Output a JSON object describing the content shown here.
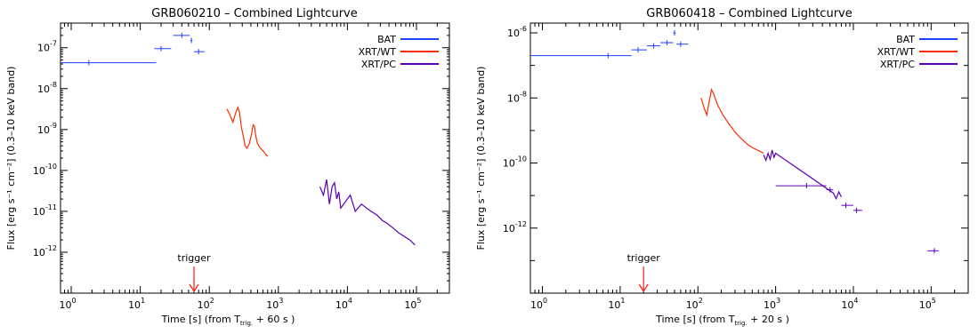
{
  "chart_data": [
    {
      "type": "scatter",
      "title": "GRB060210 – Combined Lightcurve",
      "xlabel": "Time [s]   (from T",
      "xlabel_sub": "trig.",
      "xlabel_tail": " + 60 s )",
      "ylabel": "Flux [erg s⁻¹ cm⁻²] (0.3–10 keV band)",
      "x_scale": "log",
      "y_scale": "log",
      "xlim": [
        0.7,
        300000
      ],
      "ylim": [
        1e-13,
        4e-07
      ],
      "x_ticks": [
        {
          "v": 1,
          "m": "10",
          "e": "0"
        },
        {
          "v": 10,
          "m": "10",
          "e": "1"
        },
        {
          "v": 100,
          "m": "10",
          "e": "2"
        },
        {
          "v": 1000,
          "m": "10",
          "e": "3"
        },
        {
          "v": 10000,
          "m": "10",
          "e": "4"
        },
        {
          "v": 100000,
          "m": "10",
          "e": "5"
        }
      ],
      "y_ticks": [
        {
          "v": 1e-12,
          "m": "10",
          "e": "-12"
        },
        {
          "v": 1e-11,
          "m": "10",
          "e": "-11"
        },
        {
          "v": 1e-10,
          "m": "10",
          "e": "-10"
        },
        {
          "v": 1e-09,
          "m": "10",
          "e": "-9"
        },
        {
          "v": 1e-08,
          "m": "10",
          "e": "-8"
        },
        {
          "v": 1e-07,
          "m": "10",
          "e": "-7"
        }
      ],
      "legend": {
        "placement": "top-right",
        "entries": [
          {
            "label": "BAT",
            "color": "#1f3fff"
          },
          {
            "label": "XRT/WT",
            "color": "#ff2a00"
          },
          {
            "label": "XRT/PC",
            "color": "#5a00b4"
          }
        ]
      },
      "annotation": {
        "text": "trigger",
        "x": 60,
        "color": "#ff1a1a"
      },
      "series": [
        {
          "name": "BAT",
          "color": "#1f3fff",
          "points": [
            {
              "x": 1.8,
              "y": 4.3e-08,
              "xlo": 0.7,
              "xhi": 17
            },
            {
              "x": 20,
              "y": 9.5e-08,
              "xlo": 16,
              "xhi": 28
            },
            {
              "x": 40,
              "y": 2e-07,
              "xlo": 30,
              "xhi": 52
            },
            {
              "x": 55,
              "y": 1.5e-07,
              "xlo": 53,
              "xhi": 57
            },
            {
              "x": 70,
              "y": 8e-08,
              "xlo": 60,
              "xhi": 85
            }
          ]
        },
        {
          "name": "XRT/WT",
          "color": "#ff2a00",
          "line": [
            [
              180,
              3.2e-09
            ],
            [
              200,
              2.2e-09
            ],
            [
              220,
              1.5e-09
            ],
            [
              240,
              2.5e-09
            ],
            [
              260,
              3.5e-09
            ],
            [
              275,
              2.5e-09
            ],
            [
              290,
              1.2e-09
            ],
            [
              310,
              7e-10
            ],
            [
              330,
              4e-10
            ],
            [
              350,
              3.5e-10
            ],
            [
              380,
              4.5e-10
            ],
            [
              410,
              8e-10
            ],
            [
              430,
              1.3e-09
            ],
            [
              450,
              1.2e-09
            ],
            [
              470,
              7e-10
            ],
            [
              500,
              4.5e-10
            ],
            [
              550,
              3.5e-10
            ],
            [
              600,
              3e-10
            ],
            [
              650,
              2.5e-10
            ],
            [
              700,
              2.2e-10
            ]
          ]
        },
        {
          "name": "XRT/PC",
          "color": "#5a00b4",
          "line": [
            [
              4000,
              4e-11
            ],
            [
              4500,
              2.5e-11
            ],
            [
              5000,
              6e-11
            ],
            [
              5500,
              1.5e-11
            ],
            [
              6000,
              4e-11
            ],
            [
              6500,
              5e-11
            ],
            [
              7000,
              2e-11
            ],
            [
              7500,
              3e-11
            ],
            [
              8000,
              1.2e-11
            ],
            [
              10000,
              2e-11
            ],
            [
              11000,
              2.5e-11
            ],
            [
              13000,
              1e-11
            ],
            [
              16000,
              1.5e-11
            ],
            [
              19000,
              1.2e-11
            ],
            [
              22000,
              1e-11
            ],
            [
              27000,
              8e-12
            ],
            [
              32000,
              6e-12
            ],
            [
              38000,
              5e-12
            ],
            [
              45000,
              4e-12
            ],
            [
              55000,
              3e-12
            ],
            [
              65000,
              2.5e-12
            ],
            [
              80000,
              2e-12
            ],
            [
              95000,
              1.5e-12
            ]
          ]
        }
      ]
    },
    {
      "type": "scatter",
      "title": "GRB060418 – Combined Lightcurve",
      "xlabel": "Time [s]   (from T",
      "xlabel_sub": "trig.",
      "xlabel_tail": " + 20 s )",
      "ylabel": "Flux [erg s⁻¹ cm⁻²] (0.3–10 keV band)",
      "x_scale": "log",
      "y_scale": "log",
      "xlim": [
        0.7,
        300000
      ],
      "ylim": [
        1e-14,
        2e-06
      ],
      "x_ticks": [
        {
          "v": 1,
          "m": "10",
          "e": "0"
        },
        {
          "v": 10,
          "m": "10",
          "e": "1"
        },
        {
          "v": 100,
          "m": "10",
          "e": "2"
        },
        {
          "v": 1000,
          "m": "10",
          "e": "3"
        },
        {
          "v": 10000,
          "m": "10",
          "e": "4"
        },
        {
          "v": 100000,
          "m": "10",
          "e": "5"
        }
      ],
      "y_ticks": [
        {
          "v": 1e-12,
          "m": "10",
          "e": "-12"
        },
        {
          "v": 1e-10,
          "m": "10",
          "e": "-10"
        },
        {
          "v": 1e-08,
          "m": "10",
          "e": "-8"
        },
        {
          "v": 1e-06,
          "m": "10",
          "e": "-6"
        }
      ],
      "legend": {
        "placement": "top-right",
        "entries": [
          {
            "label": "BAT",
            "color": "#1f3fff"
          },
          {
            "label": "XRT/WT",
            "color": "#ff2a00"
          },
          {
            "label": "XRT/PC",
            "color": "#5a00b4"
          }
        ]
      },
      "annotation": {
        "text": "trigger",
        "x": 20,
        "color": "#ff1a1a"
      },
      "series": [
        {
          "name": "BAT",
          "color": "#1f3fff",
          "points": [
            {
              "x": 7,
              "y": 2e-07,
              "xlo": 0.7,
              "xhi": 14
            },
            {
              "x": 17,
              "y": 3e-07,
              "xlo": 14,
              "xhi": 22
            },
            {
              "x": 27,
              "y": 4e-07,
              "xlo": 22,
              "xhi": 33
            },
            {
              "x": 40,
              "y": 5e-07,
              "xlo": 33,
              "xhi": 48
            },
            {
              "x": 50,
              "y": 1e-06,
              "xlo": 48,
              "xhi": 52
            },
            {
              "x": 60,
              "y": 4.5e-07,
              "xlo": 53,
              "xhi": 75
            }
          ]
        },
        {
          "name": "XRT/WT",
          "color": "#ff2a00",
          "line": [
            [
              110,
              1e-08
            ],
            [
              120,
              5e-09
            ],
            [
              130,
              3e-09
            ],
            [
              140,
              8e-09
            ],
            [
              150,
              1.8e-08
            ],
            [
              160,
              1.3e-08
            ],
            [
              180,
              6e-09
            ],
            [
              210,
              3e-09
            ],
            [
              250,
              1.6e-09
            ],
            [
              300,
              9e-10
            ],
            [
              350,
              6e-10
            ],
            [
              400,
              4.5e-10
            ],
            [
              450,
              3.5e-10
            ],
            [
              500,
              3e-10
            ],
            [
              600,
              2.4e-10
            ],
            [
              700,
              2e-10
            ]
          ]
        },
        {
          "name": "XRT/PC",
          "color": "#5a00b4",
          "points": [
            {
              "x": 2500,
              "y": 2e-11,
              "xlo": 1000,
              "xhi": 4500
            },
            {
              "x": 5000,
              "y": 1.5e-11,
              "xlo": 4500,
              "xhi": 5500
            },
            {
              "x": 8000,
              "y": 5e-12,
              "xlo": 7000,
              "xhi": 10000
            },
            {
              "x": 11000,
              "y": 3.5e-12,
              "xlo": 10000,
              "xhi": 13000
            },
            {
              "x": 110000,
              "y": 2e-13,
              "xlo": 90000,
              "xhi": 125000
            }
          ],
          "line": [
            [
              700,
              1.8e-10
            ],
            [
              750,
              1.2e-10
            ],
            [
              800,
              2e-10
            ],
            [
              850,
              1.3e-10
            ],
            [
              900,
              2.5e-10
            ],
            [
              950,
              1.5e-10
            ],
            [
              1000,
              2e-10
            ],
            [
              5500,
              1.2e-11
            ],
            [
              6000,
              8e-12
            ],
            [
              6500,
              1.3e-11
            ],
            [
              7000,
              9e-12
            ]
          ]
        }
      ]
    }
  ]
}
